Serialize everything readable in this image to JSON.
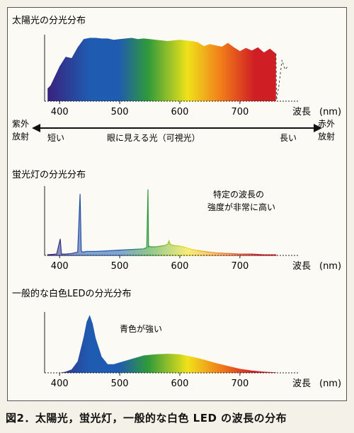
{
  "caption": "図2．太陽光，蛍光灯，一般的な白色 LED の波長の分布",
  "axis_unit": "(nm)",
  "axis_word": "波長",
  "spectrum_band": {
    "left_label_top": "紫外",
    "left_label_bottom": "放射",
    "short_label": "短い",
    "center_label": "眼に見える光（可視光）",
    "long_label": "長い",
    "right_label_top": "赤外",
    "right_label_bottom": "放射"
  },
  "colors": {
    "violet": "#3b1e7a",
    "blue": "#1f5bb0",
    "green": "#2f9a3a",
    "yellow": "#f0e21a",
    "orange": "#f07a1a",
    "red": "#d01e25"
  },
  "chart_data": [
    {
      "type": "area",
      "title": "太陽光の分光分布",
      "x_ticks": [
        400,
        500,
        600,
        700
      ],
      "x": [
        380,
        385,
        390,
        400,
        410,
        420,
        430,
        440,
        450,
        460,
        470,
        480,
        490,
        500,
        510,
        520,
        530,
        540,
        550,
        560,
        570,
        580,
        590,
        600,
        610,
        620,
        630,
        640,
        650,
        660,
        670,
        680,
        690,
        700,
        710,
        720,
        730,
        740,
        750,
        760,
        761,
        765,
        770,
        775,
        780
      ],
      "y": [
        0.2,
        0.25,
        0.35,
        0.55,
        0.7,
        0.68,
        0.85,
        0.98,
        1.0,
        1.0,
        0.99,
        0.99,
        0.97,
        0.98,
        0.99,
        1.0,
        0.98,
        0.99,
        0.98,
        0.97,
        0.96,
        0.95,
        0.96,
        0.97,
        0.96,
        0.95,
        0.93,
        0.87,
        0.9,
        0.88,
        0.86,
        0.92,
        0.85,
        0.79,
        0.84,
        0.8,
        0.85,
        0.77,
        0.83,
        0.75,
        0.02,
        0.25,
        0.65,
        0.5,
        0.55
      ],
      "xlim": [
        375,
        785
      ],
      "ylim": [
        0,
        1.05
      ]
    },
    {
      "type": "line",
      "title": "蛍光灯の分光分布",
      "annotation_line1": "特定の波長の",
      "annotation_line2": "強度が非常に高い",
      "x_ticks": [
        400,
        500,
        600,
        700
      ],
      "x": [
        380,
        395,
        401,
        403,
        405,
        410,
        420,
        430,
        434,
        436,
        438,
        445,
        460,
        480,
        500,
        520,
        540,
        545,
        547,
        548,
        549,
        551,
        560,
        575,
        580,
        582,
        584,
        586,
        590,
        600,
        610,
        620,
        640,
        660,
        680,
        700,
        720,
        740,
        760
      ],
      "y": [
        0.01,
        0.02,
        0.25,
        0.02,
        0.02,
        0.02,
        0.03,
        0.05,
        0.93,
        0.07,
        0.05,
        0.06,
        0.06,
        0.07,
        0.08,
        0.09,
        0.1,
        0.12,
        1.0,
        0.13,
        0.14,
        0.13,
        0.13,
        0.15,
        0.17,
        0.22,
        0.17,
        0.16,
        0.15,
        0.14,
        0.12,
        0.09,
        0.06,
        0.04,
        0.03,
        0.02,
        0.02,
        0.01,
        0.01
      ],
      "xlim": [
        375,
        785
      ],
      "ylim": [
        0,
        1.05
      ]
    },
    {
      "type": "area",
      "title": "一般的な白色LEDの分光分布",
      "annotation_line1": "青色が強い",
      "x_ticks": [
        400,
        500,
        600,
        700
      ],
      "x": [
        380,
        400,
        410,
        420,
        430,
        440,
        445,
        450,
        455,
        460,
        470,
        480,
        490,
        500,
        520,
        540,
        560,
        580,
        600,
        620,
        640,
        660,
        680,
        700,
        720,
        740,
        760
      ],
      "y": [
        0.0,
        0.0,
        0.02,
        0.06,
        0.2,
        0.62,
        0.88,
        1.0,
        0.85,
        0.6,
        0.28,
        0.15,
        0.15,
        0.18,
        0.24,
        0.3,
        0.32,
        0.33,
        0.32,
        0.28,
        0.23,
        0.17,
        0.12,
        0.07,
        0.04,
        0.02,
        0.01
      ],
      "xlim": [
        375,
        785
      ],
      "ylim": [
        0,
        1.05
      ]
    }
  ]
}
